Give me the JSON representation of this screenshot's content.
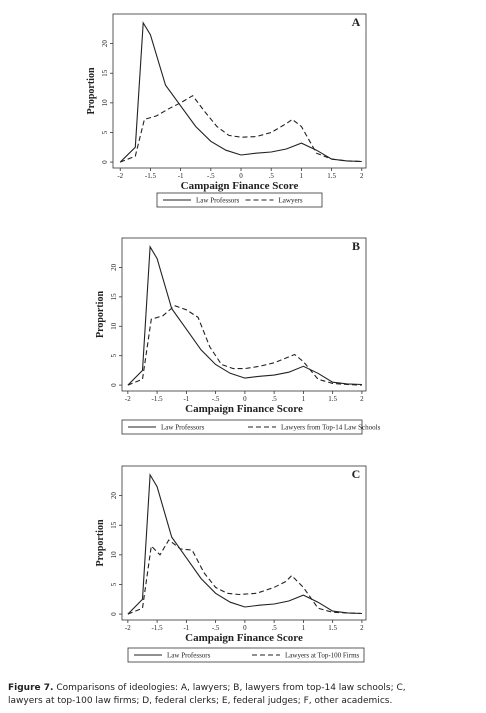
{
  "chart_data": [
    {
      "type": "line",
      "panel_label": "A",
      "y_label": "Proportion",
      "x_label": "Campaign Finance Score",
      "xlim": [
        -2.12,
        2.07
      ],
      "ylim": [
        -1,
        25
      ],
      "xticks": [
        -2,
        -1.5,
        -1,
        {
          "value": -0.5,
          "label": "-.5"
        },
        0,
        {
          "value": 0.5,
          "label": ".5"
        },
        1,
        1.5,
        2
      ],
      "yticks": [
        0,
        5,
        10,
        15,
        20
      ],
      "series": [
        {
          "name": "Law Professors",
          "color": "#222222",
          "style": "solid",
          "x": [
            -2,
            -1.75,
            -1.62,
            -1.5,
            -1.25,
            -1,
            -0.75,
            -0.5,
            -0.25,
            0,
            0.25,
            0.5,
            0.75,
            1,
            1.25,
            1.5,
            1.75,
            2
          ],
          "values": [
            0,
            2.5,
            23.5,
            21.5,
            13,
            9.5,
            6,
            3.5,
            2,
            1.2,
            1.5,
            1.7,
            2.2,
            3.2,
            2,
            0.5,
            0.2,
            0.1
          ]
        },
        {
          "name": "Lawyers",
          "color": "#222222",
          "style": "dashed",
          "x": [
            -2,
            -1.75,
            -1.6,
            -1.4,
            -1.2,
            -1,
            -0.8,
            -0.6,
            -0.4,
            -0.2,
            0,
            0.25,
            0.5,
            0.75,
            0.85,
            1,
            1.25,
            1.5,
            1.75,
            2
          ],
          "values": [
            0,
            1,
            7.2,
            7.8,
            9,
            10,
            11.2,
            8.5,
            6,
            4.5,
            4.2,
            4.3,
            5,
            6.5,
            7.2,
            6,
            1.5,
            0.5,
            0.2,
            0.1
          ]
        }
      ]
    },
    {
      "type": "line",
      "panel_label": "B",
      "y_label": "Proportion",
      "x_label": "Campaign Finance Score",
      "xlim": [
        -2.1,
        2.07
      ],
      "ylim": [
        -1,
        25
      ],
      "xticks": [
        -2,
        -1.5,
        -1,
        {
          "value": -0.5,
          "label": "-.5"
        },
        0,
        {
          "value": 0.5,
          "label": ".5"
        },
        1,
        1.5,
        2
      ],
      "yticks": [
        0,
        5,
        10,
        15,
        20
      ],
      "series": [
        {
          "name": "Law Professors",
          "color": "#222222",
          "style": "solid",
          "x": [
            -2,
            -1.75,
            -1.62,
            -1.5,
            -1.25,
            -1,
            -0.75,
            -0.5,
            -0.25,
            0,
            0.25,
            0.5,
            0.75,
            1,
            1.25,
            1.5,
            1.75,
            2
          ],
          "values": [
            0,
            2.5,
            23.5,
            21.5,
            13,
            9.5,
            6,
            3.5,
            2,
            1.2,
            1.5,
            1.7,
            2.2,
            3.2,
            2,
            0.5,
            0.2,
            0.1
          ]
        },
        {
          "name": "Lawyers from Top-14 Law Schools",
          "color": "#222222",
          "style": "dashed",
          "x": [
            -2,
            -1.75,
            -1.6,
            -1.4,
            -1.2,
            -1,
            -0.8,
            -0.6,
            -0.4,
            -0.2,
            0,
            0.25,
            0.5,
            0.75,
            0.85,
            1,
            1.25,
            1.5,
            1.75,
            2
          ],
          "values": [
            0,
            1,
            11.2,
            11.8,
            13.5,
            12.8,
            11.5,
            6.5,
            3.5,
            2.8,
            2.8,
            3.2,
            3.8,
            4.8,
            5.2,
            4,
            1,
            0.3,
            0.1,
            0
          ]
        }
      ]
    },
    {
      "type": "line",
      "panel_label": "C",
      "y_label": "Proportion",
      "x_label": "Campaign Finance Score",
      "xlim": [
        -2.1,
        2.07
      ],
      "ylim": [
        -1,
        25
      ],
      "xticks": [
        -2,
        -1.5,
        -1,
        {
          "value": -0.5,
          "label": "-.5"
        },
        0,
        {
          "value": 0.5,
          "label": ".5"
        },
        1,
        1.5,
        2
      ],
      "yticks": [
        0,
        5,
        10,
        15,
        20
      ],
      "series": [
        {
          "name": "Law Professors",
          "color": "#222222",
          "style": "solid",
          "x": [
            -2,
            -1.75,
            -1.62,
            -1.5,
            -1.25,
            -1,
            -0.75,
            -0.5,
            -0.25,
            0,
            0.25,
            0.5,
            0.75,
            1,
            1.25,
            1.5,
            1.75,
            2
          ],
          "values": [
            0,
            2.5,
            23.5,
            21.5,
            13,
            9.5,
            6,
            3.5,
            2,
            1.2,
            1.5,
            1.7,
            2.2,
            3.2,
            2,
            0.5,
            0.2,
            0.1
          ]
        },
        {
          "name": "Lawyers at Top-100 Firms",
          "color": "#222222",
          "style": "dashed",
          "x": [
            -2,
            -1.75,
            -1.6,
            -1.45,
            -1.3,
            -1.1,
            -0.9,
            -0.7,
            -0.5,
            -0.3,
            -0.1,
            0.2,
            0.5,
            0.7,
            0.8,
            1,
            1.25,
            1.5,
            2
          ],
          "values": [
            0,
            1,
            11.5,
            10,
            12.5,
            11,
            10.8,
            7,
            4.5,
            3.5,
            3.3,
            3.5,
            4.5,
            5.5,
            6.5,
            4.5,
            1,
            0.3,
            0.1
          ]
        }
      ]
    }
  ],
  "caption": {
    "label": "Figure 7.",
    "text": "Comparisons of ideologies: A, lawyers; B, lawyers from top-14 law schools; C, lawyers at top-100 law firms; D, federal clerks; E, federal judges; F, other academics."
  }
}
